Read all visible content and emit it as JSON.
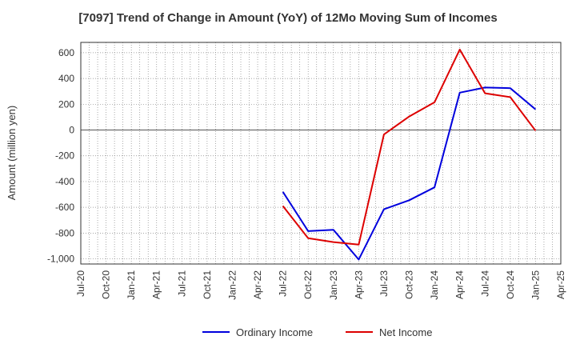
{
  "chart_data": {
    "type": "line",
    "title": "[7097]  Trend of Change in Amount (YoY) of 12Mo Moving Sum of Incomes",
    "ylabel": "Amount (million yen)",
    "xlabel": "",
    "ylim": [
      -1040,
      680
    ],
    "yticks": [
      -1000,
      -800,
      -600,
      -400,
      -200,
      0,
      200,
      400,
      600
    ],
    "ytick_labels": [
      "-1,000",
      "-800",
      "-600",
      "-400",
      "-200",
      "0",
      "200",
      "400",
      "600"
    ],
    "categories": [
      "Jul-20",
      "Oct-20",
      "Jan-21",
      "Apr-21",
      "Jul-21",
      "Oct-21",
      "Jan-22",
      "Apr-22",
      "Jul-22",
      "Oct-22",
      "Jan-23",
      "Apr-23",
      "Jul-23",
      "Oct-23",
      "Jan-24",
      "Apr-24",
      "Jul-24",
      "Oct-24",
      "Jan-25",
      "Apr-25"
    ],
    "grid": true,
    "legend_position": "bottom",
    "series": [
      {
        "name": "Ordinary Income",
        "color": "#0000dd",
        "values": [
          null,
          null,
          null,
          null,
          null,
          null,
          null,
          null,
          -480,
          -785,
          -775,
          -1005,
          -615,
          -545,
          -445,
          290,
          330,
          325,
          160,
          null
        ]
      },
      {
        "name": "Net Income",
        "color": "#dd0000",
        "values": [
          null,
          null,
          null,
          null,
          null,
          null,
          null,
          null,
          -590,
          -840,
          -870,
          -890,
          -35,
          105,
          215,
          625,
          285,
          255,
          -5,
          null
        ]
      }
    ]
  }
}
